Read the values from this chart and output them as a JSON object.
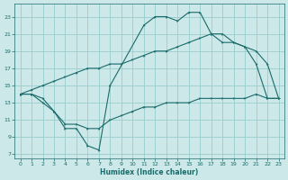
{
  "xlabel": "Humidex (Indice chaleur)",
  "bg_color": "#cce8e8",
  "grid_color": "#99cccc",
  "line_color": "#1a6b6b",
  "xlim": [
    -0.5,
    23.5
  ],
  "ylim": [
    6.5,
    24.5
  ],
  "xticks": [
    0,
    1,
    2,
    3,
    4,
    5,
    6,
    7,
    8,
    9,
    10,
    11,
    12,
    13,
    14,
    15,
    16,
    17,
    18,
    19,
    20,
    21,
    22,
    23
  ],
  "yticks": [
    7,
    9,
    11,
    13,
    15,
    17,
    19,
    21,
    23
  ],
  "curve1_x": [
    0,
    1,
    2,
    3,
    4,
    5,
    6,
    7,
    8,
    11,
    12,
    13,
    14,
    15,
    16,
    17,
    18,
    19,
    20,
    21,
    22,
    23
  ],
  "curve1_y": [
    14,
    14,
    13.5,
    12,
    10,
    10,
    8,
    7.5,
    15,
    22,
    23,
    23,
    22.5,
    23.5,
    23.5,
    21,
    20,
    20,
    19.5,
    17.5,
    13.5,
    13.5
  ],
  "curve2_x": [
    0,
    1,
    2,
    3,
    4,
    5,
    6,
    7,
    8,
    9,
    10,
    11,
    12,
    13,
    14,
    15,
    16,
    17,
    18,
    19,
    20,
    21,
    22,
    23
  ],
  "curve2_y": [
    14,
    14.5,
    15,
    15.5,
    16,
    16.5,
    17,
    17,
    17.5,
    17.5,
    18,
    18.5,
    19,
    19,
    19.5,
    20,
    20.5,
    21,
    21,
    20,
    19.5,
    19,
    17.5,
    13.5
  ],
  "curve3_x": [
    0,
    1,
    2,
    3,
    4,
    5,
    6,
    7,
    8,
    9,
    10,
    11,
    12,
    13,
    14,
    15,
    16,
    17,
    18,
    19,
    20,
    21,
    22,
    23
  ],
  "curve3_y": [
    14,
    14,
    13,
    12,
    10.5,
    10.5,
    10,
    10,
    11,
    11.5,
    12,
    12.5,
    12.5,
    13,
    13,
    13,
    13.5,
    13.5,
    13.5,
    13.5,
    13.5,
    14,
    13.5,
    13.5
  ]
}
